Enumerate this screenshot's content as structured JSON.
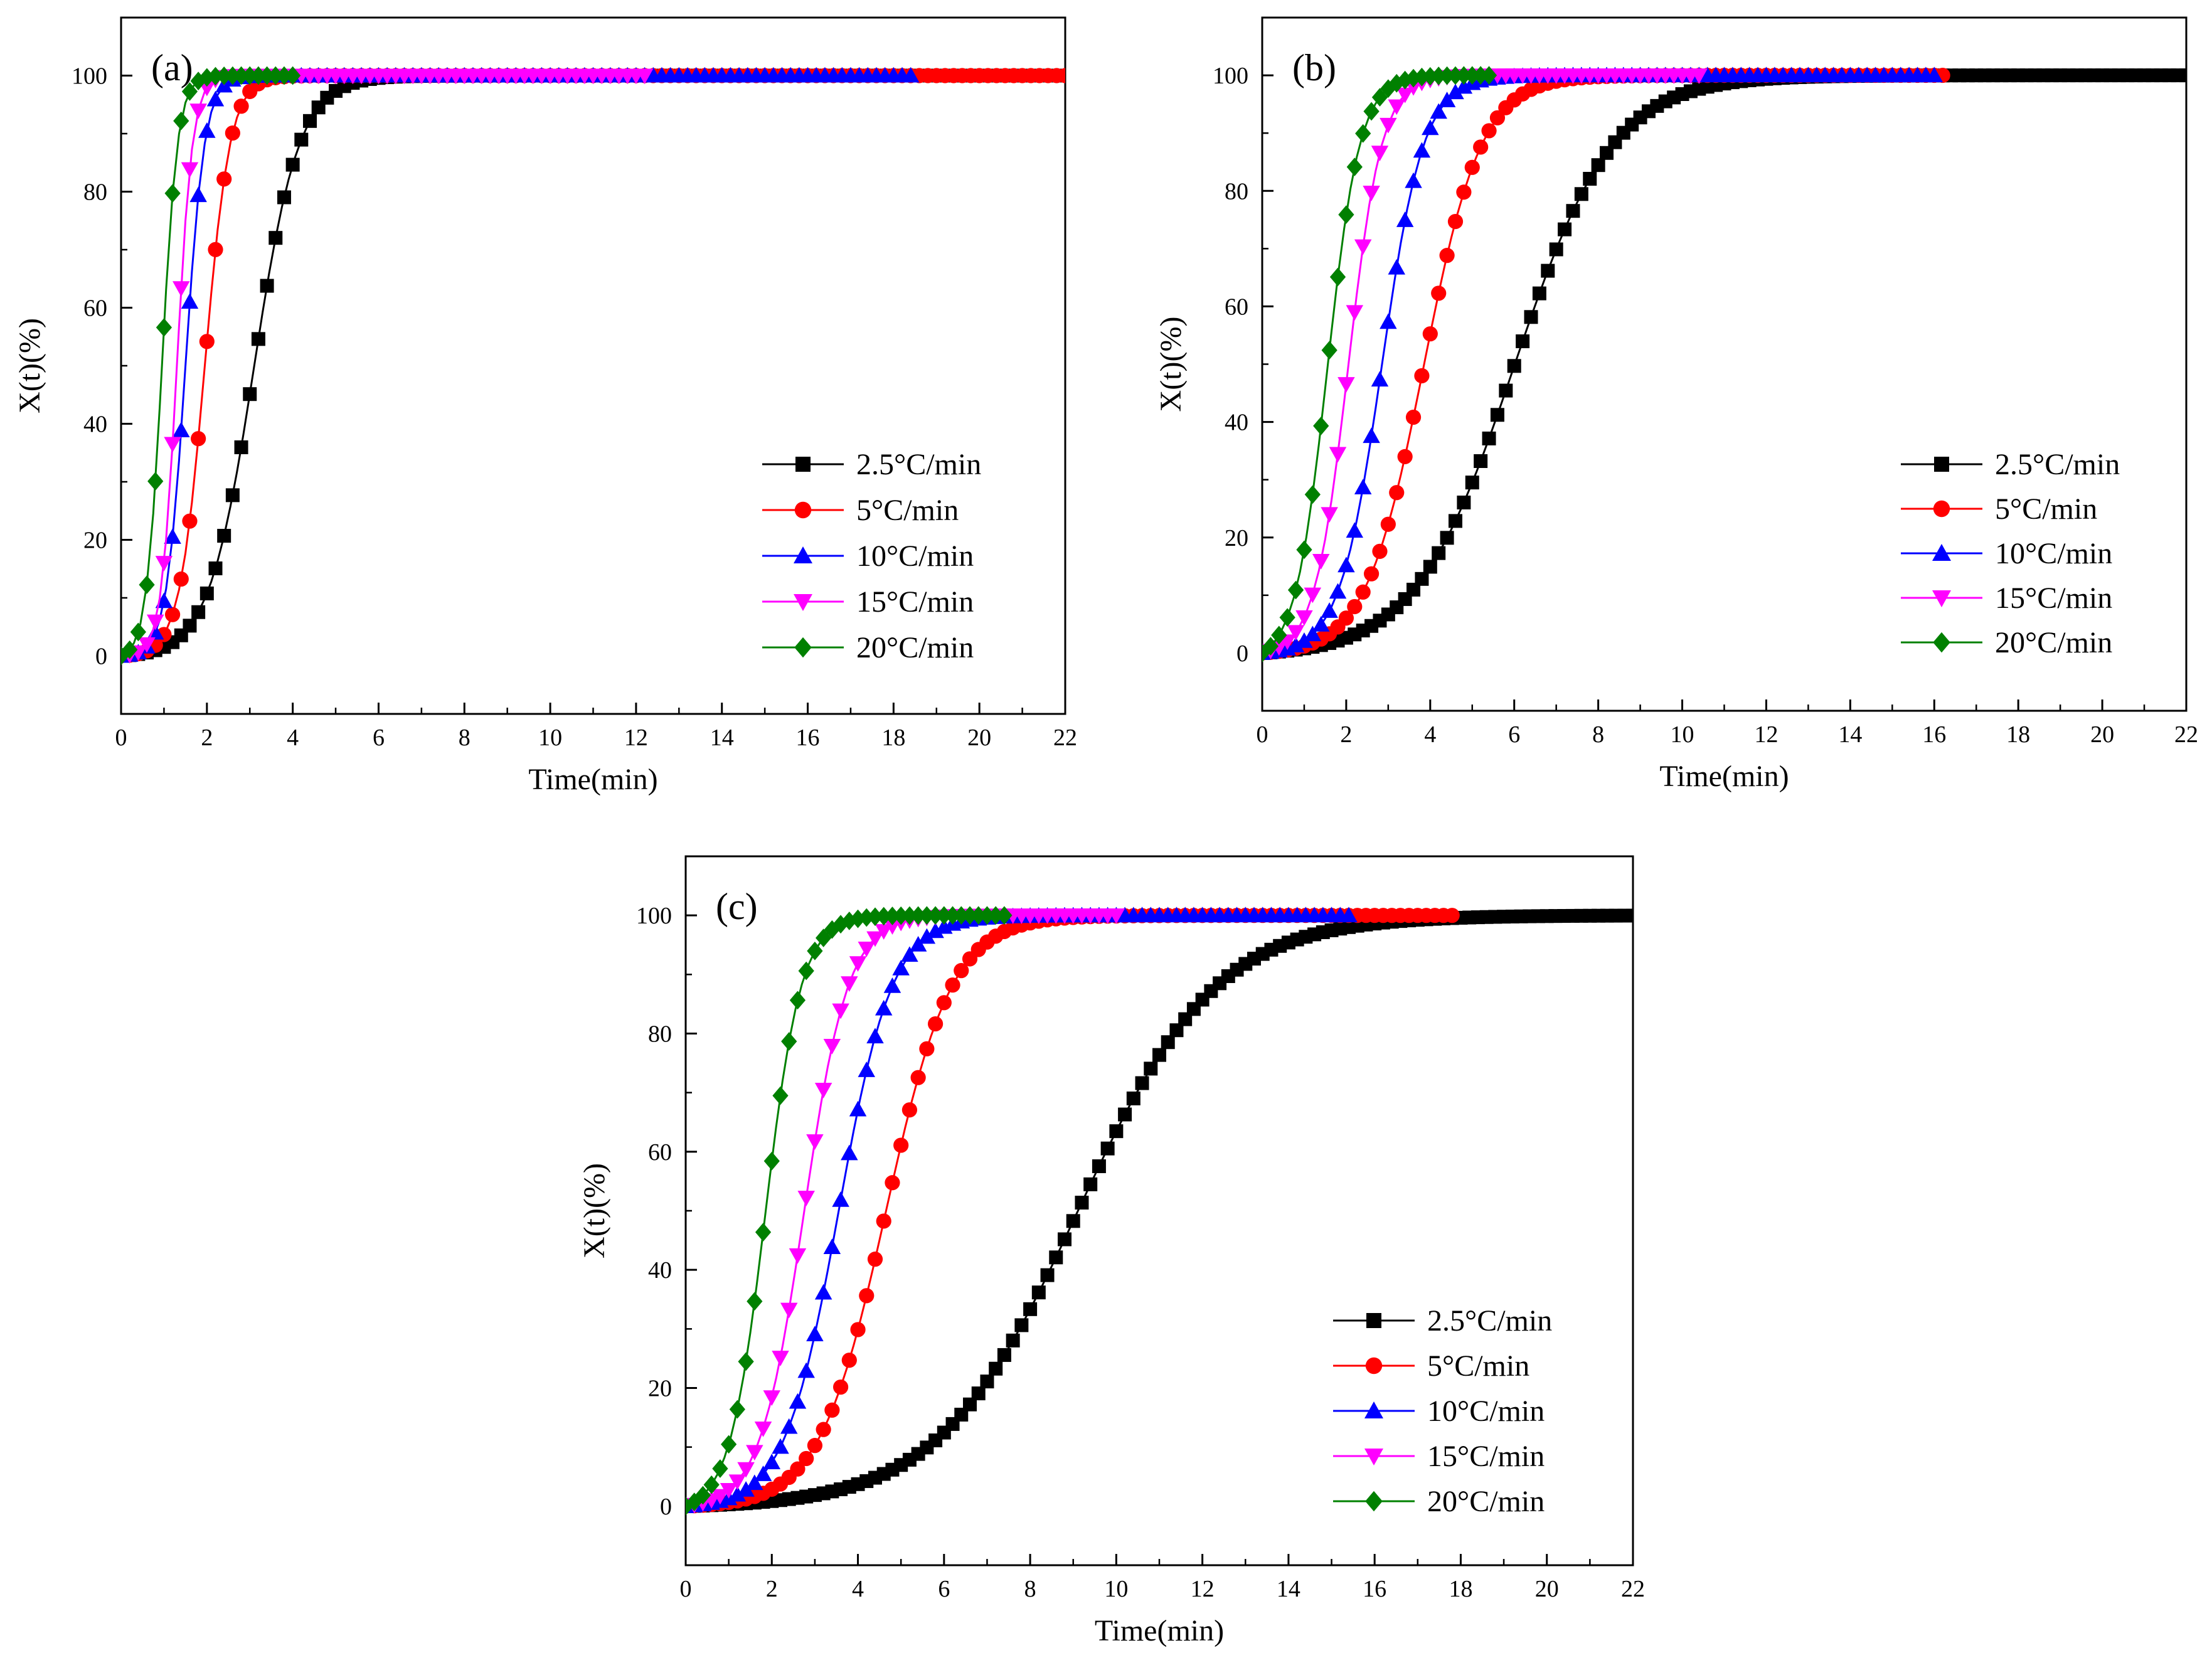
{
  "chart_data": [
    {
      "type": "line",
      "panel": "(a)",
      "xlabel": "Time(min)",
      "ylabel": "X(t)(%)",
      "xlim": [
        0,
        22
      ],
      "ylim": [
        -10,
        110
      ],
      "xticks": [
        "0",
        "2",
        "4",
        "6",
        "8",
        "10",
        "12",
        "14",
        "16",
        "18",
        "20",
        "22"
      ],
      "yticks": [
        "0",
        "20",
        "40",
        "60",
        "80",
        "100"
      ],
      "legend_position": "lower-right",
      "series": [
        {
          "name": "2.5°C/min",
          "color": "#000000",
          "marker": "square",
          "t_half": 3.1,
          "k": 1.9,
          "t_end": 22.0
        },
        {
          "name": "5°C/min",
          "color": "#ff0000",
          "marker": "circle",
          "t_half": 1.95,
          "k": 3.4,
          "t_end": 22.0
        },
        {
          "name": "10°C/min",
          "color": "#0000ff",
          "marker": "triangle-up",
          "t_half": 1.5,
          "k": 4.5,
          "t_end": 18.5
        },
        {
          "name": "15°C/min",
          "color": "#ff00ff",
          "marker": "triangle-down",
          "t_half": 1.3,
          "k": 5.5,
          "t_end": 12.2
        },
        {
          "name": "20°C/min",
          "color": "#008000",
          "marker": "diamond",
          "t_half": 0.95,
          "k": 5.5,
          "t_end": 4.0
        }
      ]
    },
    {
      "type": "line",
      "panel": "(b)",
      "xlabel": "Time(min)",
      "ylabel": "X(t)(%)",
      "xlim": [
        0,
        22
      ],
      "ylim": [
        -10,
        110
      ],
      "xticks": [
        "0",
        "2",
        "4",
        "6",
        "8",
        "10",
        "12",
        "14",
        "16",
        "18",
        "20",
        "22"
      ],
      "yticks": [
        "0",
        "20",
        "40",
        "60",
        "80",
        "100"
      ],
      "legend_position": "lower-right",
      "series": [
        {
          "name": "2.5°C/min",
          "color": "#000000",
          "marker": "square",
          "t_half": 6.0,
          "k": 0.85,
          "t_end": 22.0
        },
        {
          "name": "5°C/min",
          "color": "#ff0000",
          "marker": "circle",
          "t_half": 3.85,
          "k": 1.45,
          "t_end": 16.3
        },
        {
          "name": "10°C/min",
          "color": "#0000ff",
          "marker": "triangle-up",
          "t_half": 2.85,
          "k": 2.0,
          "t_end": 16.0
        },
        {
          "name": "15°C/min",
          "color": "#ff00ff",
          "marker": "triangle-down",
          "t_half": 2.05,
          "k": 2.5,
          "t_end": 10.4
        },
        {
          "name": "20°C/min",
          "color": "#008000",
          "marker": "diamond",
          "t_half": 1.55,
          "k": 2.6,
          "t_end": 5.4
        }
      ]
    },
    {
      "type": "line",
      "panel": "(c)",
      "xlabel": "Time(min)",
      "ylabel": "X(t)(%)",
      "xlim": [
        0,
        22
      ],
      "ylim": [
        -10,
        110
      ],
      "xticks": [
        "0",
        "2",
        "4",
        "6",
        "8",
        "10",
        "12",
        "14",
        "16",
        "18",
        "20",
        "22"
      ],
      "yticks": [
        "0",
        "20",
        "40",
        "60",
        "80",
        "100"
      ],
      "legend_position": "lower-right",
      "series": [
        {
          "name": "2.5°C/min",
          "color": "#000000",
          "marker": "square",
          "t_half": 9.1,
          "k": 0.62,
          "t_end": 22.0
        },
        {
          "name": "5°C/min",
          "color": "#ff0000",
          "marker": "circle",
          "t_half": 4.65,
          "k": 1.3,
          "t_end": 17.9
        },
        {
          "name": "10°C/min",
          "color": "#0000ff",
          "marker": "triangle-up",
          "t_half": 3.55,
          "k": 1.6,
          "t_end": 15.5
        },
        {
          "name": "15°C/min",
          "color": "#ff00ff",
          "marker": "triangle-down",
          "t_half": 2.75,
          "k": 1.95,
          "t_end": 10.0
        },
        {
          "name": "20°C/min",
          "color": "#008000",
          "marker": "diamond",
          "t_half": 1.85,
          "k": 2.4,
          "t_end": 7.5
        }
      ]
    }
  ]
}
